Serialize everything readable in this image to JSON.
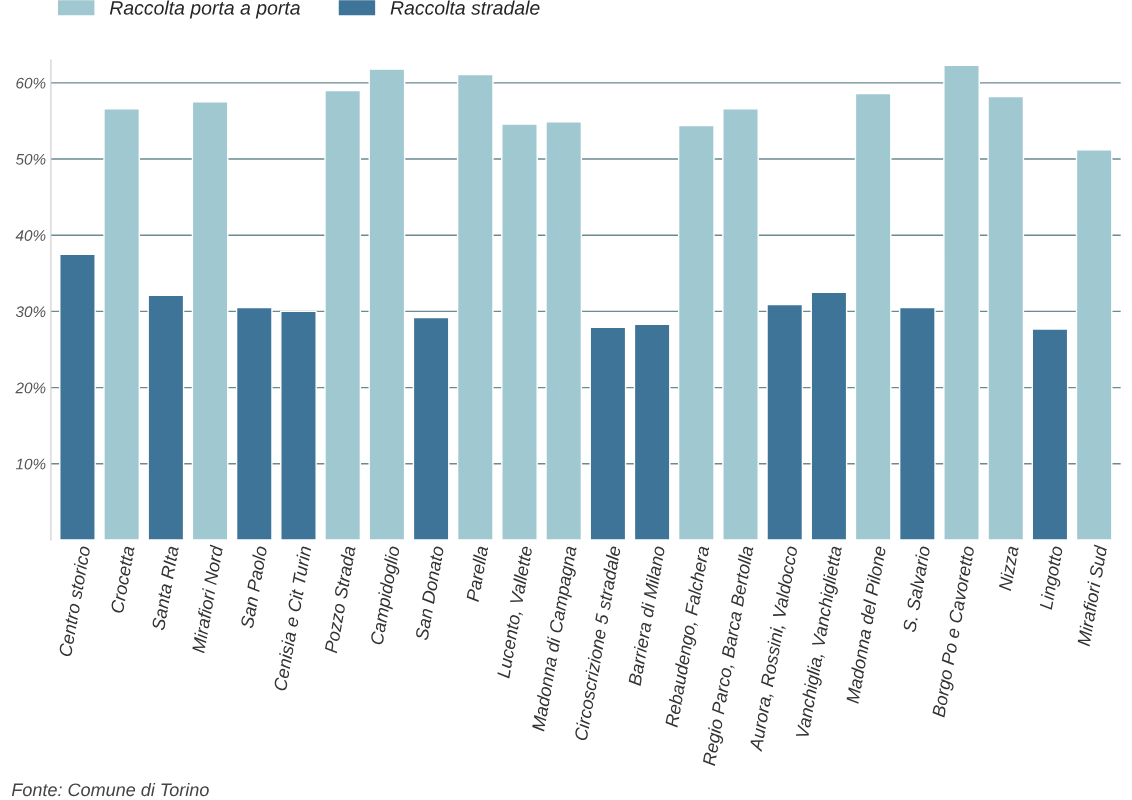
{
  "chart_data": {
    "type": "bar",
    "categories": [
      "Centro storico",
      "Crocetta",
      "Santa RIta",
      "Mirafiori Nord",
      "San Paolo",
      "Cenisia e Cit Turin",
      "Pozzo Strada",
      "Campidoglio",
      "San Donato",
      "Parella",
      "Lucento, Vallette",
      "Madonna di Campagna",
      "Circoscrizione 5 stradale",
      "Barriera di Milano",
      "Rebaudengo, Falchera",
      "Regio Parco, Barca Bertolla",
      "Aurora, Rossini, Valdocco",
      "Vanchiglia, Vanchiglietta",
      "Madonna del Pilone",
      "S. Salvario",
      "Borgo Po e Cavoretto",
      "Nizza",
      "Lingotto",
      "Mirafiori Sud"
    ],
    "series": [
      {
        "name": "Raccolta porta a porta",
        "color": "#a0c8d0",
        "values": [
          null,
          56.6,
          null,
          57.5,
          null,
          null,
          59.0,
          61.8,
          null,
          61.1,
          54.6,
          54.9,
          null,
          null,
          54.4,
          56.6,
          null,
          null,
          58.6,
          null,
          62.3,
          58.2,
          null,
          51.2
        ]
      },
      {
        "name": "Raccolta stradale",
        "color": "#3f7499",
        "values": [
          37.5,
          null,
          32.1,
          null,
          30.5,
          30.0,
          null,
          null,
          29.2,
          null,
          null,
          null,
          27.9,
          28.3,
          null,
          null,
          30.9,
          32.5,
          null,
          30.5,
          null,
          null,
          27.7,
          null
        ]
      }
    ],
    "ylim": [
      0,
      63
    ],
    "yticks": [
      {
        "value": 10,
        "label": "10%"
      },
      {
        "value": 20,
        "label": "20%"
      },
      {
        "value": 30,
        "label": "30%"
      },
      {
        "value": 40,
        "label": "40%"
      },
      {
        "value": 50,
        "label": "50%"
      },
      {
        "value": 60,
        "label": "60%"
      }
    ],
    "grid": "y",
    "legend": "top left",
    "annotations": [
      "Fonte: Comune di Torino"
    ]
  }
}
